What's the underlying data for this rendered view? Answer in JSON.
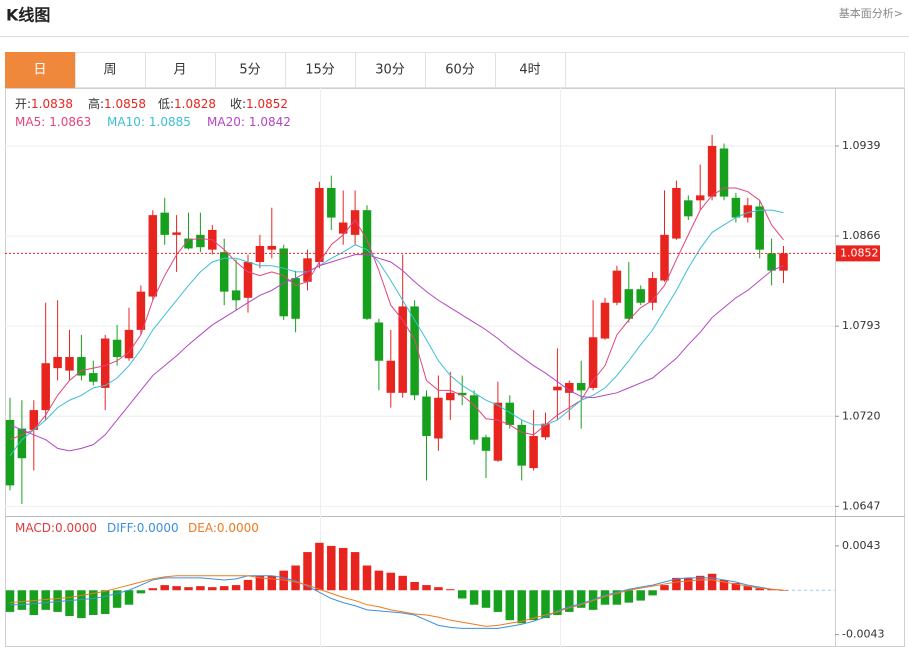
{
  "header": {
    "title": "K线图",
    "link": "基本面分析>"
  },
  "tabs": [
    "日",
    "周",
    "月",
    "5分",
    "15分",
    "30分",
    "60分",
    "4时"
  ],
  "active_tab": 0,
  "chart_data": [
    {
      "type": "candlestick",
      "ohlc_legend": [
        {
          "label": "开:",
          "value": "1.0838"
        },
        {
          "label": "高:",
          "value": "1.0858"
        },
        {
          "label": "低:",
          "value": "1.0828"
        },
        {
          "label": "收:",
          "value": "1.0852"
        }
      ],
      "up_color": "#e8241f",
      "down_color": "#17a01e",
      "open": [
        1.0717,
        1.071,
        1.0709,
        1.0725,
        1.0759,
        1.0757,
        1.0768,
        1.0755,
        1.0743,
        1.0782,
        1.0767,
        1.079,
        1.0817,
        1.0885,
        1.0867,
        1.0864,
        1.0867,
        1.0855,
        1.0853,
        1.0822,
        1.0816,
        1.0845,
        1.0855,
        1.0856,
        1.0832,
        1.0829,
        1.0845,
        1.0905,
        1.0868,
        1.0867,
        1.0887,
        1.0796,
        1.0739,
        1.0739,
        1.0809,
        1.0736,
        1.0702,
        1.0733,
        1.0739,
        1.0737,
        1.0703,
        1.0684,
        1.0731,
        1.0713,
        1.0678,
        1.0703,
        1.0741,
        1.0739,
        1.0747,
        1.0743,
        1.0783,
        1.0812,
        1.0823,
        1.0823,
        1.0812,
        1.083,
        1.0864,
        1.0895,
        1.0895,
        1.0898,
        1.0937,
        1.0897,
        1.0881,
        1.089,
        1.0852,
        1.0838
      ],
      "high": [
        1.0735,
        1.0733,
        1.0733,
        1.0812,
        1.0814,
        1.079,
        1.0786,
        1.0765,
        1.0786,
        1.0794,
        1.0808,
        1.0826,
        1.0887,
        1.0897,
        1.0883,
        1.0885,
        1.0885,
        1.0875,
        1.0864,
        1.0847,
        1.0851,
        1.0867,
        1.0889,
        1.0859,
        1.0838,
        1.0855,
        1.091,
        1.0915,
        1.0903,
        1.0903,
        1.0891,
        1.0799,
        1.079,
        1.0851,
        1.0814,
        1.0741,
        1.0753,
        1.0756,
        1.0753,
        1.0741,
        1.0705,
        1.0748,
        1.0737,
        1.0717,
        1.0725,
        1.0723,
        1.0775,
        1.0749,
        1.0765,
        1.0814,
        1.0816,
        1.0842,
        1.0845,
        1.0826,
        1.0837,
        1.0903,
        1.0911,
        1.0899,
        1.0924,
        1.0948,
        1.0941,
        1.0901,
        1.0897,
        1.0895,
        1.0864,
        1.0858
      ],
      "low": [
        1.066,
        1.0649,
        1.0676,
        1.0717,
        1.0749,
        1.0749,
        1.0749,
        1.0745,
        1.0725,
        1.0761,
        1.0765,
        1.0786,
        1.0814,
        1.0859,
        1.0837,
        1.0855,
        1.0853,
        1.0851,
        1.081,
        1.0806,
        1.0804,
        1.084,
        1.0848,
        1.0798,
        1.0788,
        1.0822,
        1.084,
        1.0871,
        1.0859,
        1.0859,
        1.0798,
        1.0741,
        1.0727,
        1.0735,
        1.0733,
        1.0668,
        1.0692,
        1.0717,
        1.0729,
        1.0697,
        1.067,
        1.0683,
        1.071,
        1.0668,
        1.0676,
        1.0701,
        1.0717,
        1.0717,
        1.071,
        1.0741,
        1.0782,
        1.081,
        1.0796,
        1.081,
        1.0806,
        1.0829,
        1.0863,
        1.0879,
        1.0887,
        1.0895,
        1.0895,
        1.0877,
        1.0877,
        1.0848,
        1.0826,
        1.0828
      ],
      "close": [
        1.0664,
        1.0686,
        1.0725,
        1.0763,
        1.0768,
        1.0768,
        1.0753,
        1.0748,
        1.0783,
        1.0768,
        1.079,
        1.0821,
        1.0883,
        1.0867,
        1.0869,
        1.0856,
        1.0857,
        1.0871,
        1.0821,
        1.0814,
        1.0845,
        1.0858,
        1.0858,
        1.0801,
        1.0799,
        1.0848,
        1.0905,
        1.0881,
        1.0877,
        1.0887,
        1.0799,
        1.0765,
        1.0765,
        1.0809,
        1.0737,
        1.0704,
        1.0735,
        1.0739,
        1.0737,
        1.0701,
        1.0692,
        1.0731,
        1.0713,
        1.068,
        1.0704,
        1.0714,
        1.0744,
        1.0747,
        1.0741,
        1.0784,
        1.0812,
        1.0838,
        1.0799,
        1.0812,
        1.0832,
        1.0867,
        1.0905,
        1.0882,
        1.0899,
        1.0939,
        1.0898,
        1.0881,
        1.0891,
        1.0855,
        1.0838,
        1.0852
      ],
      "series": [
        {
          "name": "MA5:",
          "label": "1.0863",
          "color": "#e2447e",
          "values": [
            1.0701,
            1.0705,
            1.0709,
            1.0721,
            1.0737,
            1.0749,
            1.0757,
            1.0759,
            1.0761,
            1.0765,
            1.0772,
            1.0786,
            1.0814,
            1.0834,
            1.0851,
            1.0863,
            1.0864,
            1.0863,
            1.0855,
            1.0845,
            1.0837,
            1.0834,
            1.0837,
            1.0834,
            1.0826,
            1.0829,
            1.0845,
            1.0859,
            1.0867,
            1.0879,
            1.0863,
            1.0838,
            1.081,
            1.0798,
            1.0782,
            1.0749,
            1.0741,
            1.0741,
            1.0737,
            1.0729,
            1.0718,
            1.0717,
            1.0713,
            1.0707,
            1.0705,
            1.0713,
            1.0721,
            1.0727,
            1.0733,
            1.0749,
            1.0761,
            1.0786,
            1.0798,
            1.0808,
            1.0814,
            1.0826,
            1.0847,
            1.0867,
            1.0887,
            1.0899,
            1.0905,
            1.0905,
            1.0902,
            1.0895,
            1.0875,
            1.0863
          ]
        },
        {
          "name": "MA10:",
          "label": "1.0885",
          "color": "#3cbfd6",
          "values": [
            1.0688,
            1.0701,
            1.0709,
            1.0717,
            1.0727,
            1.0733,
            1.0737,
            1.0743,
            1.0745,
            1.0751,
            1.0761,
            1.0774,
            1.079,
            1.0802,
            1.0814,
            1.0826,
            1.0837,
            1.0845,
            1.0848,
            1.0848,
            1.0845,
            1.0842,
            1.0842,
            1.084,
            1.0837,
            1.0837,
            1.0842,
            1.0848,
            1.0853,
            1.0859,
            1.0855,
            1.0845,
            1.083,
            1.0814,
            1.0798,
            1.0782,
            1.0765,
            1.0753,
            1.0745,
            1.0739,
            1.0733,
            1.0729,
            1.0723,
            1.0717,
            1.0713,
            1.0713,
            1.0717,
            1.0725,
            1.0733,
            1.0737,
            1.0743,
            1.0753,
            1.0765,
            1.0778,
            1.079,
            1.0806,
            1.0822,
            1.084,
            1.0856,
            1.0869,
            1.0875,
            1.0881,
            1.0885,
            1.0887,
            1.0887,
            1.0885
          ]
        },
        {
          "name": "MA20:",
          "label": "1.0842",
          "color": "#b446c4",
          "values": [
            1.0713,
            1.0709,
            1.0705,
            1.0701,
            1.0694,
            1.0692,
            1.0694,
            1.0697,
            1.0705,
            1.0717,
            1.0729,
            1.0741,
            1.0753,
            1.0761,
            1.0769,
            1.0778,
            1.0786,
            1.0794,
            1.08,
            1.0806,
            1.0812,
            1.0818,
            1.0822,
            1.0828,
            1.0832,
            1.0837,
            1.0842,
            1.0845,
            1.0848,
            1.0851,
            1.0851,
            1.0848,
            1.0845,
            1.0838,
            1.0829,
            1.0821,
            1.0814,
            1.0808,
            1.0802,
            1.0796,
            1.079,
            1.0783,
            1.0775,
            1.0768,
            1.0761,
            1.0755,
            1.0748,
            1.0741,
            1.0736,
            1.0735,
            1.0737,
            1.0739,
            1.0743,
            1.0747,
            1.0751,
            1.0759,
            1.0767,
            1.0778,
            1.0788,
            1.08,
            1.0808,
            1.0816,
            1.0822,
            1.083,
            1.0838,
            1.0842
          ]
        }
      ],
      "last_price": 1.0852,
      "ylim": [
        1.064,
        1.0986
      ],
      "yticks": [
        1.0647,
        {
          "value": 1.072,
          "label": "1.0720"
        },
        1.0793,
        1.0866,
        1.0939
      ],
      "grid": true
    },
    {
      "type": "macd",
      "histogram": {
        "name": "MACD:",
        "label": "0.0000",
        "color": "#e03a3a",
        "up_color": "#e8241f",
        "down_color": "#17a01e",
        "values": [
          -0.0021,
          -0.0019,
          -0.0024,
          -0.0019,
          -0.0021,
          -0.0025,
          -0.0027,
          -0.0024,
          -0.0023,
          -0.0017,
          -0.0014,
          -0.0003,
          0.0002,
          0.0005,
          0.0004,
          0.0003,
          0.0004,
          0.0003,
          0.0004,
          0.0005,
          0.001,
          0.0014,
          0.0014,
          0.0019,
          0.0024,
          0.0037,
          0.0046,
          0.0043,
          0.0041,
          0.0037,
          0.0024,
          0.0019,
          0.0017,
          0.0014,
          0.0008,
          0.0005,
          0.0003,
          0.0001,
          -0.0008,
          -0.0014,
          -0.0017,
          -0.0021,
          -0.0029,
          -0.0032,
          -0.0029,
          -0.0027,
          -0.0024,
          -0.0021,
          -0.0017,
          -0.0019,
          -0.0014,
          -0.0014,
          -0.0012,
          -0.001,
          -0.0005,
          0.0005,
          0.0012,
          0.0012,
          0.0014,
          0.0016,
          0.001,
          0.0007,
          0.0004,
          0.0002,
          0.0001,
          0
        ]
      },
      "series": [
        {
          "name": "DIFF:",
          "label": "0.0000",
          "color": "#3d8fe0",
          "values": [
            -0.0014,
            -0.0014,
            -0.0013,
            -0.0012,
            -0.0011,
            -0.001,
            -0.0009,
            -0.0008,
            -0.0006,
            -0.0003,
            0,
            0.0005,
            0.001,
            0.0012,
            0.0012,
            0.0012,
            0.0012,
            0.0011,
            0.001,
            0.0011,
            0.0014,
            0.0014,
            0.0014,
            0.0012,
            0.0009,
            0.0004,
            -0.0002,
            -0.0008,
            -0.0012,
            -0.0015,
            -0.0019,
            -0.002,
            -0.0021,
            -0.0022,
            -0.0024,
            -0.0029,
            -0.0034,
            -0.0036,
            -0.0037,
            -0.0037,
            -0.0037,
            -0.0037,
            -0.0035,
            -0.0033,
            -0.003,
            -0.0026,
            -0.002,
            -0.0016,
            -0.0013,
            -0.0009,
            -0.0005,
            -0.0002,
            0.0001,
            0.0003,
            0.0005,
            0.0008,
            0.0011,
            0.0012,
            0.0012,
            0.0012,
            0.001,
            0.0008,
            0.0005,
            0.0003,
            0.0001,
            0
          ]
        },
        {
          "name": "DEA:",
          "label": "0.0000",
          "color": "#f07a20",
          "values": [
            -0.0012,
            -0.0011,
            -0.001,
            -0.0009,
            -0.0008,
            -0.0007,
            -0.0005,
            -0.0003,
            -0.0001,
            0.0002,
            0.0005,
            0.0008,
            0.0011,
            0.0013,
            0.0014,
            0.0014,
            0.0014,
            0.0014,
            0.0014,
            0.0014,
            0.0014,
            0.0012,
            0.0011,
            0.001,
            0.0008,
            0.0005,
            0.0001,
            -0.0003,
            -0.0007,
            -0.001,
            -0.0014,
            -0.0016,
            -0.0019,
            -0.0021,
            -0.0023,
            -0.0024,
            -0.0026,
            -0.0029,
            -0.0031,
            -0.0033,
            -0.0035,
            -0.0034,
            -0.0032,
            -0.003,
            -0.0027,
            -0.0024,
            -0.0021,
            -0.0017,
            -0.0014,
            -0.001,
            -0.0006,
            -0.0003,
            0,
            0.0002,
            0.0004,
            0.0006,
            0.0008,
            0.0009,
            0.001,
            0.001,
            0.0008,
            0.0006,
            0.0004,
            0.0002,
            0.0001,
            0
          ]
        }
      ],
      "ylim": [
        -0.0055,
        0.0071
      ],
      "yticks": [
        0.0043,
        -0.0043
      ],
      "grid": false
    }
  ]
}
